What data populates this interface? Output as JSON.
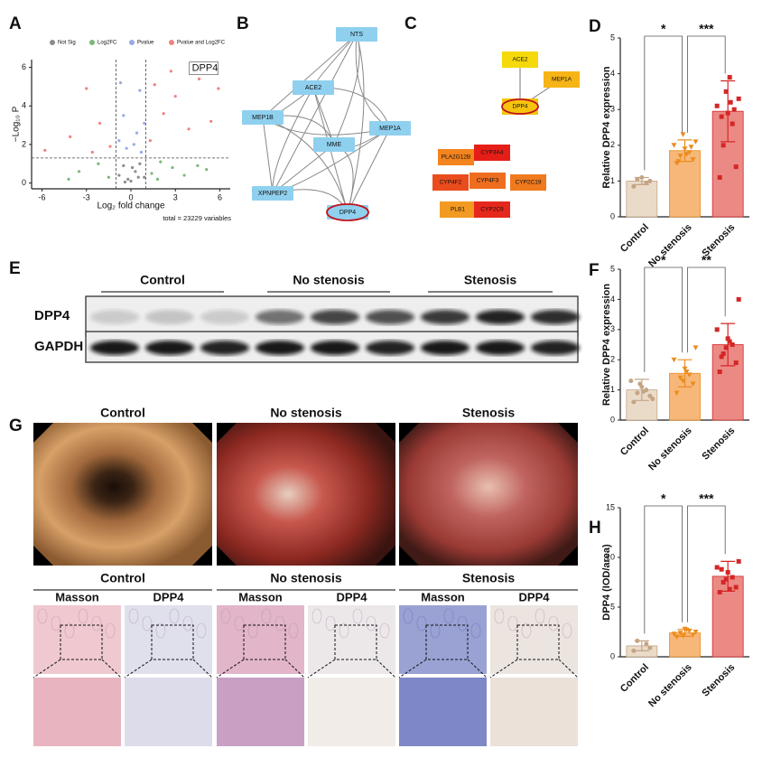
{
  "panel_labels": [
    "A",
    "B",
    "C",
    "D",
    "E",
    "F",
    "G",
    "H"
  ],
  "chart_data": [
    {
      "type": "scatter",
      "legend": [
        "Not Sig",
        "Log2FC",
        "Pvalue",
        "Pvalue and Log2FC"
      ],
      "x_label": "Log₂ fold change",
      "y_label": "−Log₁₀ P",
      "caption": "total = 23229 variables",
      "xlim": [
        -6.7,
        6.7
      ],
      "ylim": [
        -0.3,
        6.4
      ],
      "xticks": [
        -6,
        -3,
        0,
        3,
        6
      ],
      "yticks": [
        0,
        2,
        4,
        6
      ],
      "x_thresholds": [
        -1,
        1
      ],
      "y_threshold": 1.3,
      "series": [
        {
          "name": "Not Sig",
          "color": "#8c8c8c",
          "x": [
            -0.8,
            -0.5,
            -0.2,
            0,
            0.3,
            0.6,
            0.9,
            -0.4,
            0.1,
            0.5
          ],
          "values": [
            0.4,
            0.9,
            0.2,
            0.1,
            0.6,
            1.0,
            0.3,
            0.05,
            0.8,
            0.3
          ]
        },
        {
          "name": "Log2FC",
          "color": "#7ab87a",
          "x": [
            -3.5,
            -2.2,
            -1.5,
            1.4,
            2.0,
            2.8,
            3.6,
            4.5,
            -4.2,
            1.8,
            5.1
          ],
          "values": [
            0.6,
            1.0,
            0.3,
            0.5,
            1.1,
            0.8,
            0.4,
            0.9,
            0.2,
            0.2,
            0.7
          ]
        },
        {
          "name": "Pvalue",
          "color": "#9aa8e8",
          "x": [
            -0.8,
            -0.5,
            -0.3,
            0.4,
            0.6,
            0.9,
            -0.7,
            0.7,
            0.2
          ],
          "values": [
            2.2,
            3.5,
            1.8,
            2.6,
            4.8,
            3.1,
            5.2,
            1.6,
            2.0
          ]
        },
        {
          "name": "Pvalue and Log2FC",
          "color": "#f08080",
          "x": [
            -5.8,
            -4.1,
            -3.0,
            -2.1,
            -1.4,
            1.3,
            2.2,
            3.0,
            3.9,
            4.6,
            5.4,
            5.9,
            2.7,
            -2.6,
            1.6
          ],
          "values": [
            1.7,
            2.4,
            4.9,
            3.1,
            1.9,
            2.2,
            3.6,
            4.5,
            2.8,
            5.4,
            3.2,
            4.9,
            5.8,
            1.6,
            5.1
          ]
        }
      ],
      "annotation": {
        "label": "DPP4",
        "x": 4.3,
        "y": 5.9
      }
    },
    {
      "type": "bar",
      "y_label": "Relative DPP4 expression",
      "categories": [
        "Control",
        "No stenosis",
        "Stenosis"
      ],
      "values": [
        1.0,
        1.85,
        2.95
      ],
      "errors": [
        0.1,
        0.3,
        0.85
      ],
      "ylim": [
        0,
        5
      ],
      "yticks": [
        0,
        1,
        2,
        3,
        4,
        5
      ],
      "colors": [
        "#eadbc9",
        "#f6b779",
        "#eb8a85"
      ],
      "point_colors": [
        "#c5a485",
        "#ec8c1f",
        "#d42626"
      ],
      "points": [
        [
          0.85,
          1.0,
          1.05,
          0.95,
          1.1
        ],
        [
          1.5,
          1.6,
          1.7,
          1.8,
          1.9,
          2.0,
          2.1,
          2.3,
          1.75,
          1.55,
          1.95
        ],
        [
          1.1,
          1.4,
          2.0,
          2.6,
          2.9,
          3.1,
          3.3,
          3.5,
          3.9,
          2.8,
          3.0,
          3.2
        ]
      ],
      "significance": [
        "*",
        "***"
      ]
    },
    {
      "type": "bar",
      "y_label": "Relative DPP4 expression",
      "categories": [
        "Control",
        "No stenosis",
        "Stenosis"
      ],
      "values": [
        1.0,
        1.55,
        2.5
      ],
      "errors": [
        0.35,
        0.45,
        0.7
      ],
      "ylim": [
        0,
        5
      ],
      "yticks": [
        0,
        1,
        2,
        3,
        4,
        5
      ],
      "colors": [
        "#eadbc9",
        "#f6b779",
        "#eb8a85"
      ],
      "point_colors": [
        "#c5a485",
        "#ec8c1f",
        "#d42626"
      ],
      "points": [
        [
          0.6,
          0.8,
          0.9,
          1.0,
          1.1,
          1.3,
          0.7,
          1.2,
          0.95
        ],
        [
          0.9,
          1.2,
          1.4,
          1.5,
          1.7,
          2.0,
          2.4,
          1.3,
          1.6
        ],
        [
          1.6,
          1.9,
          2.2,
          2.5,
          2.7,
          3.0,
          4.0,
          2.4,
          2.6,
          2.1
        ]
      ],
      "significance": [
        "*",
        "**"
      ]
    },
    {
      "type": "bar",
      "y_label": "DPP4 (IOD/area)",
      "categories": [
        "Control",
        "No stenosis",
        "Stenosis"
      ],
      "values": [
        1.1,
        2.4,
        8.1
      ],
      "errors": [
        0.5,
        0.35,
        1.5
      ],
      "ylim": [
        0,
        15
      ],
      "yticks": [
        0,
        5,
        10,
        15
      ],
      "colors": [
        "#eadbc9",
        "#f6b779",
        "#eb8a85"
      ],
      "point_colors": [
        "#c5a485",
        "#ec8c1f",
        "#d42626"
      ],
      "points": [
        [
          0.6,
          0.9,
          1.6,
          1.3
        ],
        [
          2.0,
          2.2,
          2.4,
          2.6,
          2.8,
          2.3,
          2.5,
          2.1,
          2.7
        ],
        [
          6.5,
          7.0,
          7.5,
          8.0,
          8.5,
          9.0,
          9.6,
          7.8,
          6.8,
          8.8
        ]
      ],
      "significance": [
        "*",
        "***"
      ]
    }
  ],
  "network_b": {
    "nodes": [
      "NTS",
      "ACE2",
      "MEP1B",
      "MME",
      "MEP1A",
      "XPNPEP2",
      "DPP4"
    ]
  },
  "network_c": {
    "nodes": [
      "ACE2",
      "MEP1A",
      "DPP4",
      "PLA2G12B",
      "CYP3A4",
      "CYP4F2",
      "CYP4F3",
      "CYP2C19",
      "PLB1",
      "CYP2C9"
    ]
  },
  "blot": {
    "groups": [
      "Control",
      "No stenosis",
      "Stenosis"
    ],
    "rows": [
      "DPP4",
      "GAPDH"
    ]
  },
  "endoscopy": {
    "groups": [
      "Control",
      "No stenosis",
      "Stenosis"
    ]
  },
  "histology": {
    "groups": [
      {
        "name": "Control",
        "stains": [
          "Masson",
          "DPP4"
        ]
      },
      {
        "name": "No stenosis",
        "stains": [
          "Masson",
          "DPP4"
        ]
      },
      {
        "name": "Stenosis",
        "stains": [
          "Masson",
          "DPP4"
        ]
      }
    ]
  }
}
